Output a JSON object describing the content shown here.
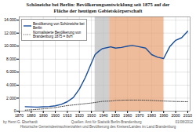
{
  "chart_data": {
    "type": "line",
    "title": "Schöneiche bei Berlin: Bevölkerungsentwicklung seit 1875 auf der\nFläche der heutigen Gebietskörperschaft",
    "annotations": [
      "by Henri G. Eberhardt",
      "Quellen: Amt für Statistik Berlin-Brandenburg",
      "Historische Gemeindeeinwohnerzahlen und Bevölkerung des Kreises/Landes im Land Brandenburg",
      "01/08/2012"
    ],
    "series": [
      {
        "name": "Bevölkerung von Schöneiche bei\nBerlin",
        "color": "#1a4e9a",
        "line_style": "solid",
        "x": [
          1875,
          1880,
          1885,
          1890,
          1895,
          1900,
          1905,
          1910,
          1915,
          1920,
          1925,
          1930,
          1933,
          1936,
          1939,
          1946,
          1950,
          1955,
          1960,
          1964,
          1970,
          1975,
          1980,
          1985,
          1990,
          1995,
          2000,
          2005,
          2010
        ],
        "values": [
          680,
          650,
          620,
          660,
          710,
          820,
          1050,
          1450,
          2100,
          3400,
          5200,
          7400,
          8700,
          9200,
          9600,
          9900,
          9700,
          9800,
          10000,
          10100,
          9900,
          9700,
          8700,
          8300,
          8100,
          9900,
          10900,
          11300,
          12300
        ]
      },
      {
        "name": "Normalisierte Bevölkerung von\nBrandenburg 1875 = 8vH",
        "color": "#444444",
        "line_style": "dotted",
        "x": [
          1875,
          1880,
          1890,
          1900,
          1910,
          1920,
          1930,
          1939,
          1946,
          1950,
          1960,
          1970,
          1980,
          1990,
          2000,
          2010
        ],
        "values": [
          150,
          200,
          350,
          550,
          850,
          1050,
          1250,
          1500,
          1550,
          1650,
          1700,
          1700,
          1650,
          1550,
          1480,
          1450
        ]
      }
    ],
    "spans": [
      {
        "start": 1933,
        "end": 1945,
        "color": "#bbbbbb"
      },
      {
        "start": 1945,
        "end": 1990,
        "color": "#e8a070"
      }
    ],
    "xlim": [
      1870,
      2012
    ],
    "xticks": [
      1870,
      1880,
      1890,
      1900,
      1910,
      1920,
      1930,
      1940,
      1950,
      1960,
      1970,
      1980,
      1990,
      2000,
      2010
    ],
    "ylim": [
      0,
      14500
    ],
    "yticks": [
      0,
      {
        "value": 2000,
        "label": "2.000"
      },
      {
        "value": 4000,
        "label": "4.000"
      },
      {
        "value": 6000,
        "label": "6.000"
      },
      {
        "value": 8000,
        "label": "8.000"
      },
      {
        "value": 10000,
        "label": "10.000"
      },
      {
        "value": 12000,
        "label": "12.000"
      },
      {
        "value": 14000,
        "label": "14.000"
      }
    ],
    "grid": true,
    "legend": "upper left"
  }
}
